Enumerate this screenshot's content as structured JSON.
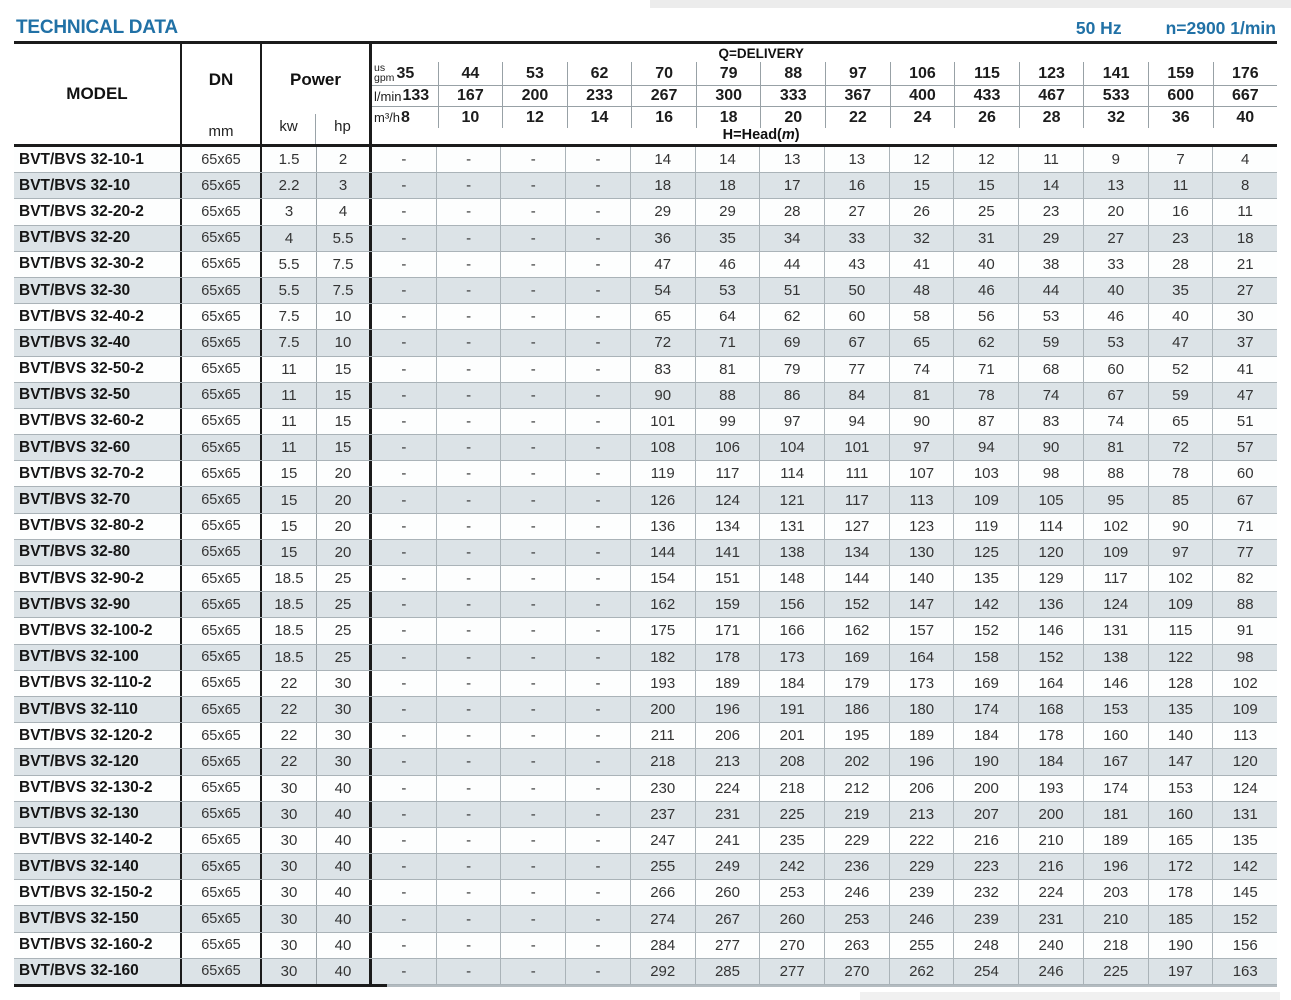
{
  "page": {
    "title": "TECHNICAL DATA",
    "frequency": "50 Hz",
    "speed": "n=2900 1/min"
  },
  "table": {
    "headers": {
      "model": "MODEL",
      "dn": "DN",
      "dn_unit": "mm",
      "power": "Power",
      "kw": "kw",
      "hp": "hp",
      "delivery": "Q=DELIVERY",
      "head_prefix": "H=Head(",
      "head_unit": "m",
      "head_suffix": ")",
      "gpm_unit_top": "us",
      "gpm_unit_bottom": "gpm",
      "lmin_unit": "l/min",
      "m3h_unit": "m³/h"
    },
    "delivery": {
      "gpm": [
        "35",
        "44",
        "53",
        "62",
        "70",
        "79",
        "88",
        "97",
        "106",
        "115",
        "123",
        "141",
        "159",
        "176"
      ],
      "lmin": [
        "133",
        "167",
        "200",
        "233",
        "267",
        "300",
        "333",
        "367",
        "400",
        "433",
        "467",
        "533",
        "600",
        "667"
      ],
      "m3h": [
        "8",
        "10",
        "12",
        "14",
        "16",
        "18",
        "20",
        "22",
        "24",
        "26",
        "28",
        "32",
        "36",
        "40"
      ]
    },
    "rows": [
      [
        "BVT/BVS 32-10-1",
        "65x65",
        "1.5",
        "2",
        "-",
        "-",
        "-",
        "-",
        "14",
        "14",
        "13",
        "13",
        "12",
        "12",
        "11",
        "9",
        "7",
        "4"
      ],
      [
        "BVT/BVS 32-10",
        "65x65",
        "2.2",
        "3",
        "-",
        "-",
        "-",
        "-",
        "18",
        "18",
        "17",
        "16",
        "15",
        "15",
        "14",
        "13",
        "11",
        "8"
      ],
      [
        "BVT/BVS 32-20-2",
        "65x65",
        "3",
        "4",
        "-",
        "-",
        "-",
        "-",
        "29",
        "29",
        "28",
        "27",
        "26",
        "25",
        "23",
        "20",
        "16",
        "11"
      ],
      [
        "BVT/BVS 32-20",
        "65x65",
        "4",
        "5.5",
        "-",
        "-",
        "-",
        "-",
        "36",
        "35",
        "34",
        "33",
        "32",
        "31",
        "29",
        "27",
        "23",
        "18"
      ],
      [
        "BVT/BVS 32-30-2",
        "65x65",
        "5.5",
        "7.5",
        "-",
        "-",
        "-",
        "-",
        "47",
        "46",
        "44",
        "43",
        "41",
        "40",
        "38",
        "33",
        "28",
        "21"
      ],
      [
        "BVT/BVS 32-30",
        "65x65",
        "5.5",
        "7.5",
        "-",
        "-",
        "-",
        "-",
        "54",
        "53",
        "51",
        "50",
        "48",
        "46",
        "44",
        "40",
        "35",
        "27"
      ],
      [
        "BVT/BVS 32-40-2",
        "65x65",
        "7.5",
        "10",
        "-",
        "-",
        "-",
        "-",
        "65",
        "64",
        "62",
        "60",
        "58",
        "56",
        "53",
        "46",
        "40",
        "30"
      ],
      [
        "BVT/BVS 32-40",
        "65x65",
        "7.5",
        "10",
        "-",
        "-",
        "-",
        "-",
        "72",
        "71",
        "69",
        "67",
        "65",
        "62",
        "59",
        "53",
        "47",
        "37"
      ],
      [
        "BVT/BVS 32-50-2",
        "65x65",
        "11",
        "15",
        "-",
        "-",
        "-",
        "-",
        "83",
        "81",
        "79",
        "77",
        "74",
        "71",
        "68",
        "60",
        "52",
        "41"
      ],
      [
        "BVT/BVS 32-50",
        "65x65",
        "11",
        "15",
        "-",
        "-",
        "-",
        "-",
        "90",
        "88",
        "86",
        "84",
        "81",
        "78",
        "74",
        "67",
        "59",
        "47"
      ],
      [
        "BVT/BVS 32-60-2",
        "65x65",
        "11",
        "15",
        "-",
        "-",
        "-",
        "-",
        "101",
        "99",
        "97",
        "94",
        "90",
        "87",
        "83",
        "74",
        "65",
        "51"
      ],
      [
        "BVT/BVS 32-60",
        "65x65",
        "11",
        "15",
        "-",
        "-",
        "-",
        "-",
        "108",
        "106",
        "104",
        "101",
        "97",
        "94",
        "90",
        "81",
        "72",
        "57"
      ],
      [
        "BVT/BVS 32-70-2",
        "65x65",
        "15",
        "20",
        "-",
        "-",
        "-",
        "-",
        "119",
        "117",
        "114",
        "111",
        "107",
        "103",
        "98",
        "88",
        "78",
        "60"
      ],
      [
        "BVT/BVS 32-70",
        "65x65",
        "15",
        "20",
        "-",
        "-",
        "-",
        "-",
        "126",
        "124",
        "121",
        "117",
        "113",
        "109",
        "105",
        "95",
        "85",
        "67"
      ],
      [
        "BVT/BVS 32-80-2",
        "65x65",
        "15",
        "20",
        "-",
        "-",
        "-",
        "-",
        "136",
        "134",
        "131",
        "127",
        "123",
        "119",
        "114",
        "102",
        "90",
        "71"
      ],
      [
        "BVT/BVS 32-80",
        "65x65",
        "15",
        "20",
        "-",
        "-",
        "-",
        "-",
        "144",
        "141",
        "138",
        "134",
        "130",
        "125",
        "120",
        "109",
        "97",
        "77"
      ],
      [
        "BVT/BVS 32-90-2",
        "65x65",
        "18.5",
        "25",
        "-",
        "-",
        "-",
        "-",
        "154",
        "151",
        "148",
        "144",
        "140",
        "135",
        "129",
        "117",
        "102",
        "82"
      ],
      [
        "BVT/BVS 32-90",
        "65x65",
        "18.5",
        "25",
        "-",
        "-",
        "-",
        "-",
        "162",
        "159",
        "156",
        "152",
        "147",
        "142",
        "136",
        "124",
        "109",
        "88"
      ],
      [
        "BVT/BVS 32-100-2",
        "65x65",
        "18.5",
        "25",
        "-",
        "-",
        "-",
        "-",
        "175",
        "171",
        "166",
        "162",
        "157",
        "152",
        "146",
        "131",
        "115",
        "91"
      ],
      [
        "BVT/BVS 32-100",
        "65x65",
        "18.5",
        "25",
        "-",
        "-",
        "-",
        "-",
        "182",
        "178",
        "173",
        "169",
        "164",
        "158",
        "152",
        "138",
        "122",
        "98"
      ],
      [
        "BVT/BVS 32-110-2",
        "65x65",
        "22",
        "30",
        "-",
        "-",
        "-",
        "-",
        "193",
        "189",
        "184",
        "179",
        "173",
        "169",
        "164",
        "146",
        "128",
        "102"
      ],
      [
        "BVT/BVS 32-110",
        "65x65",
        "22",
        "30",
        "-",
        "-",
        "-",
        "-",
        "200",
        "196",
        "191",
        "186",
        "180",
        "174",
        "168",
        "153",
        "135",
        "109"
      ],
      [
        "BVT/BVS 32-120-2",
        "65x65",
        "22",
        "30",
        "-",
        "-",
        "-",
        "-",
        "211",
        "206",
        "201",
        "195",
        "189",
        "184",
        "178",
        "160",
        "140",
        "113"
      ],
      [
        "BVT/BVS 32-120",
        "65x65",
        "22",
        "30",
        "-",
        "-",
        "-",
        "-",
        "218",
        "213",
        "208",
        "202",
        "196",
        "190",
        "184",
        "167",
        "147",
        "120"
      ],
      [
        "BVT/BVS 32-130-2",
        "65x65",
        "30",
        "40",
        "-",
        "-",
        "-",
        "-",
        "230",
        "224",
        "218",
        "212",
        "206",
        "200",
        "193",
        "174",
        "153",
        "124"
      ],
      [
        "BVT/BVS 32-130",
        "65x65",
        "30",
        "40",
        "-",
        "-",
        "-",
        "-",
        "237",
        "231",
        "225",
        "219",
        "213",
        "207",
        "200",
        "181",
        "160",
        "131"
      ],
      [
        "BVT/BVS 32-140-2",
        "65x65",
        "30",
        "40",
        "-",
        "-",
        "-",
        "-",
        "247",
        "241",
        "235",
        "229",
        "222",
        "216",
        "210",
        "189",
        "165",
        "135"
      ],
      [
        "BVT/BVS 32-140",
        "65x65",
        "30",
        "40",
        "-",
        "-",
        "-",
        "-",
        "255",
        "249",
        "242",
        "236",
        "229",
        "223",
        "216",
        "196",
        "172",
        "142"
      ],
      [
        "BVT/BVS 32-150-2",
        "65x65",
        "30",
        "40",
        "-",
        "-",
        "-",
        "-",
        "266",
        "260",
        "253",
        "246",
        "239",
        "232",
        "224",
        "203",
        "178",
        "145"
      ],
      [
        "BVT/BVS 32-150",
        "65x65",
        "30",
        "40",
        "-",
        "-",
        "-",
        "-",
        "274",
        "267",
        "260",
        "253",
        "246",
        "239",
        "231",
        "210",
        "185",
        "152"
      ],
      [
        "BVT/BVS 32-160-2",
        "65x65",
        "30",
        "40",
        "-",
        "-",
        "-",
        "-",
        "284",
        "277",
        "270",
        "263",
        "255",
        "248",
        "240",
        "218",
        "190",
        "156"
      ],
      [
        "BVT/BVS 32-160",
        "65x65",
        "30",
        "40",
        "-",
        "-",
        "-",
        "-",
        "292",
        "285",
        "277",
        "270",
        "262",
        "254",
        "246",
        "225",
        "197",
        "163"
      ]
    ]
  }
}
